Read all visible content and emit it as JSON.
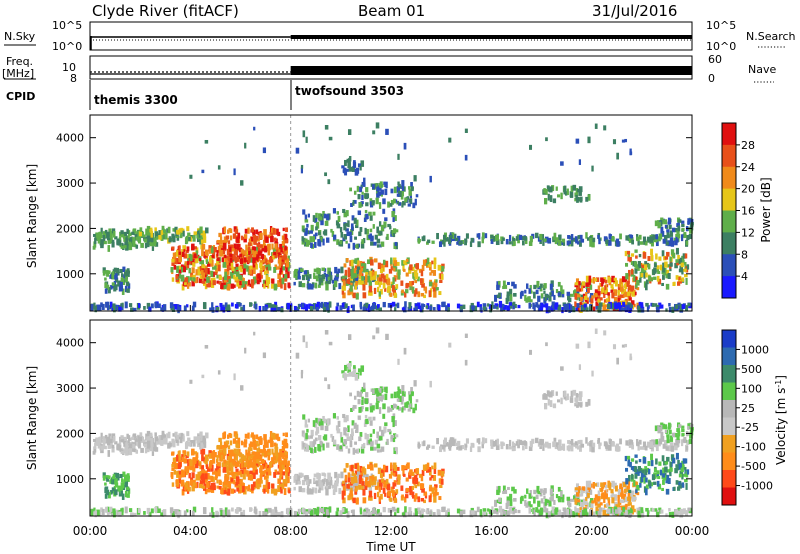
{
  "header": {
    "station": "Clyde River (fitACF)",
    "beam": "Beam 01",
    "date": "31/Jul/2016"
  },
  "colors": {
    "power_scale": [
      "#1a1aff",
      "#2b4fb8",
      "#3c7f62",
      "#5fae4a",
      "#e6c619",
      "#f08a1a",
      "#e8501a",
      "#e01010"
    ],
    "velocity_scale": [
      "#e01010",
      "#ff4a1a",
      "#ff8c1a",
      "#f0a020",
      "#c8c8c8",
      "#b8b8b8",
      "#5cc84a",
      "#3c8a6a",
      "#2d6ab0",
      "#1a3cc8"
    ],
    "ground_scatter": "#c0c0c0"
  },
  "chart_data": [
    {
      "type": "line",
      "panel": "noise",
      "left_label": "N.Sky",
      "right_label": "N.Search",
      "left_ticks": [
        "10^5",
        "10^0"
      ],
      "right_ticks": [
        "10^5",
        "10^0"
      ],
      "log_scale": true
    },
    {
      "type": "line",
      "panel": "frequency",
      "left_label_1": "Freq.",
      "left_label_2": "[MHz]",
      "right_label": "Nave",
      "left_ticks": [
        "10",
        "8"
      ],
      "right_ticks": [
        "60",
        "0"
      ]
    },
    {
      "type": "table",
      "panel": "cpid",
      "label": "CPID",
      "programs": [
        {
          "name": "themis 3300",
          "start_hour": 0,
          "end_hour": 8
        },
        {
          "name": "twofsound 3503",
          "start_hour": 8,
          "end_hour": 24
        }
      ]
    },
    {
      "type": "heatmap",
      "panel": "power",
      "ylabel": "Slant Range [km]",
      "ylim": [
        180,
        4500
      ],
      "yticks": [
        1000,
        2000,
        3000,
        4000
      ],
      "xlim_hours": [
        0,
        24
      ],
      "colorbar_label": "Power [dB]",
      "colorbar_ticks": [
        "28",
        "24",
        "20",
        "16",
        "12",
        "8",
        "4"
      ]
    },
    {
      "type": "heatmap",
      "panel": "velocity",
      "ylabel": "Slant Range [km]",
      "ylim": [
        180,
        4500
      ],
      "yticks": [
        1000,
        2000,
        3000,
        4000
      ],
      "xlim_hours": [
        0,
        24
      ],
      "xticks": [
        "00:00",
        "04:00",
        "08:00",
        "12:00",
        "16:00",
        "20:00",
        "00:00"
      ],
      "xlabel": "Time UT",
      "colorbar_label": "Velocity [m s",
      "colorbar_unit_exp": "-1",
      "colorbar_close": "]",
      "colorbar_ticks": [
        "1000",
        "500",
        "100",
        "25",
        "-25",
        "-100",
        "-500",
        "-1000"
      ]
    }
  ]
}
